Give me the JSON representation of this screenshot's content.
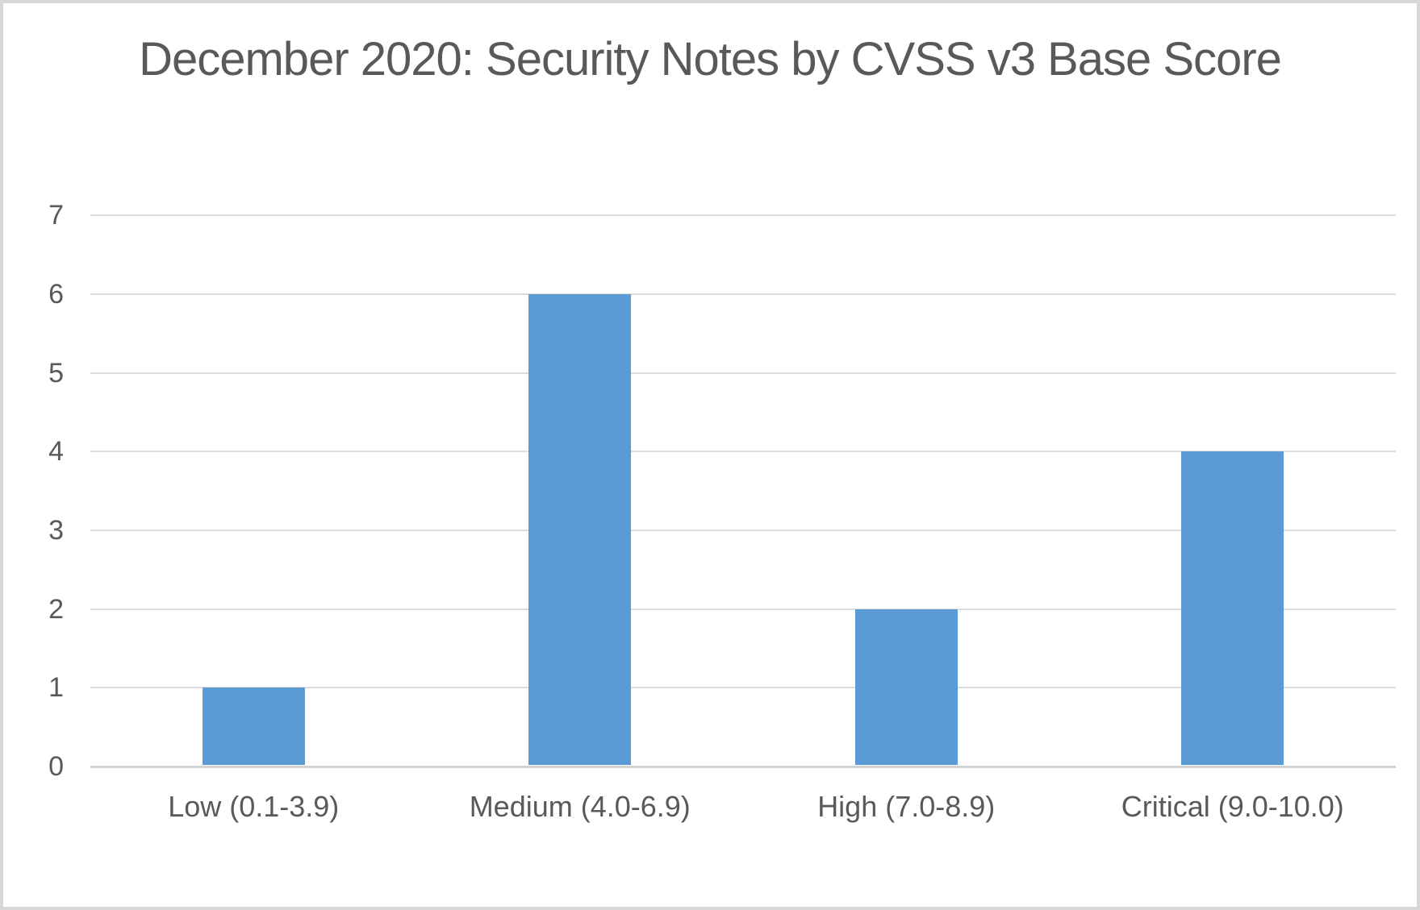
{
  "chart_data": {
    "type": "bar",
    "title": "December 2020: Security Notes by CVSS v3 Base Score",
    "categories": [
      "Low (0.1-3.9)",
      "Medium (4.0-6.9)",
      "High (7.0-8.9)",
      "Critical (9.0-10.0)"
    ],
    "values": [
      1,
      6,
      2,
      4
    ],
    "xlabel": "",
    "ylabel": "",
    "ylim": [
      0,
      7
    ],
    "yticks": [
      0,
      1,
      2,
      3,
      4,
      5,
      6,
      7
    ],
    "grid": "horizontal",
    "legend_position": "none",
    "bar_color": "#5B9BD5",
    "text_color": "#595959",
    "gridline_color": "#DCDCDC",
    "axis_line_color": "#D2D2D2",
    "border_color": "#D8D8D8"
  }
}
